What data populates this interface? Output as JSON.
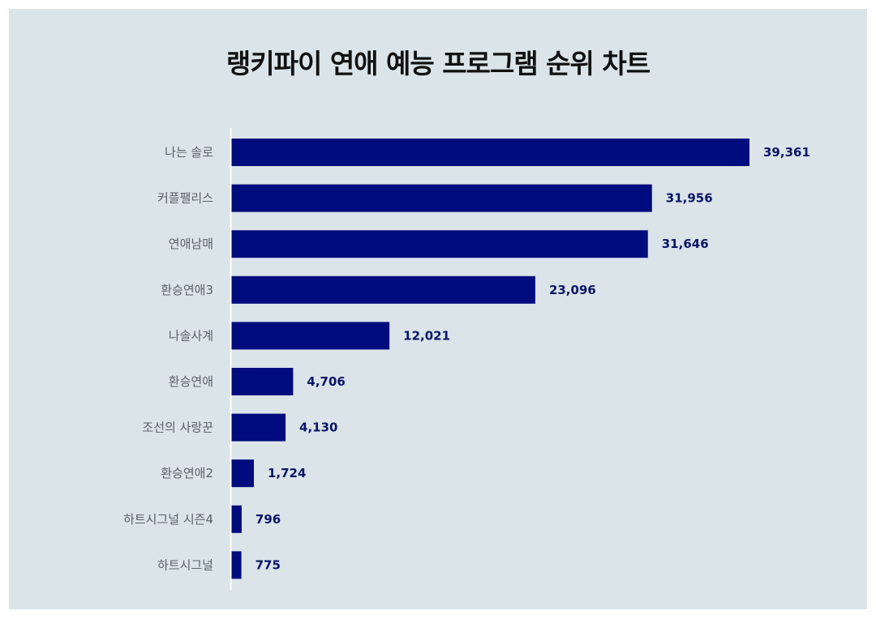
{
  "title": "랭키파이 연애 예능 프로그램 순위 차트",
  "colors": {
    "bar": "#000c7d",
    "value_label": "#0a1466",
    "axis": "#ffffff",
    "background": "#dae4e9"
  },
  "chart_data": {
    "type": "bar",
    "orientation": "horizontal",
    "categories": [
      "나는 솔로",
      "커플팰리스",
      "연애남매",
      "환승연애3",
      "나솔사계",
      "환승연애",
      "조선의 사랑꾼",
      "환승연애2",
      "하트시그널 시즌4",
      "하트시그널"
    ],
    "values": [
      39361,
      31956,
      31646,
      23096,
      12021,
      4706,
      4130,
      1724,
      796,
      775
    ],
    "value_labels": [
      "39,361",
      "31,956",
      "31,646",
      "23,096",
      "12,021",
      "4,706",
      "4,130",
      "1,724",
      "796",
      "775"
    ],
    "title": "랭키파이 연애 예능 프로그램 순위 차트",
    "xlabel": "",
    "ylabel": "",
    "xlim": [
      0,
      39361
    ],
    "grid": false,
    "legend": "none"
  }
}
